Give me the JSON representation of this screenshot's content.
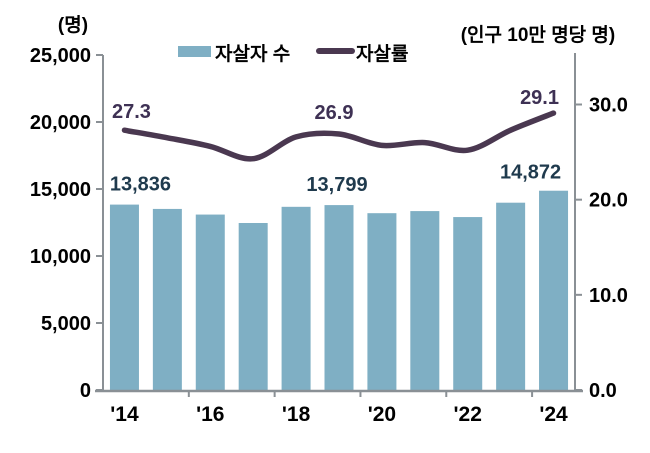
{
  "chart_data": {
    "type": "combo",
    "categories": [
      "2014",
      "2015",
      "2016",
      "2017",
      "2018",
      "2019",
      "2020",
      "2021",
      "2022",
      "2023",
      "2024"
    ],
    "x_tick_labels": [
      "'14",
      "'16",
      "'18",
      "'20",
      "'22",
      "'24"
    ],
    "series": [
      {
        "name": "자살자 수",
        "chart": "bar",
        "axis": "left",
        "color": "#7FAFC4",
        "values": [
          13836,
          13513,
          13092,
          12463,
          13670,
          13799,
          13195,
          13352,
          12906,
          13978,
          14872
        ],
        "point_labels": [
          {
            "index": 0,
            "text": "13,836"
          },
          {
            "index": 5,
            "text": "13,799"
          },
          {
            "index": 10,
            "text": "14,872"
          }
        ]
      },
      {
        "name": "자살률",
        "chart": "line",
        "axis": "right",
        "color": "#4A3850",
        "values": [
          27.3,
          26.5,
          25.6,
          24.3,
          26.6,
          26.9,
          25.7,
          26.0,
          25.2,
          27.3,
          29.1
        ],
        "point_labels": [
          {
            "index": 0,
            "text": "27.3"
          },
          {
            "index": 5,
            "text": "26.9"
          },
          {
            "index": 10,
            "text": "29.1"
          }
        ]
      }
    ],
    "left_axis": {
      "unit": "(명)",
      "tick_labels": [
        "25,000",
        "20,000",
        "15,000",
        "10,000",
        "5,000",
        "0"
      ],
      "min": 0,
      "max": 25000
    },
    "right_axis": {
      "unit": "(인구 10만 명당 명)",
      "tick_labels": [
        "30.0",
        "20.0",
        "10.0",
        "0.0"
      ],
      "min": 0,
      "max": 30
    },
    "grid": false,
    "legend_position": "top-center"
  },
  "legend": [
    {
      "label": "자살자 수",
      "swatch": "bar-swatch"
    },
    {
      "label": "자살률",
      "swatch": "line-swatch"
    }
  ],
  "colors": {
    "background": "#FFFFFF",
    "bar": "#7FAFC4",
    "line": "#4A3850",
    "axis": "#8A9095",
    "bar_label": "#1F3A4D",
    "rate_label": "#3E3154",
    "text": "#000000"
  }
}
